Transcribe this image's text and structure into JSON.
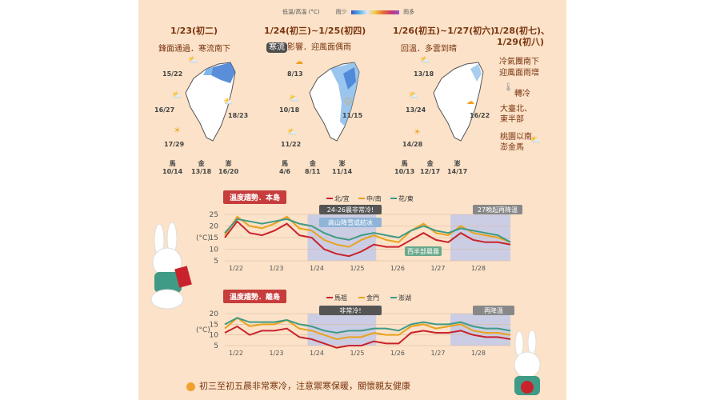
{
  "legend": {
    "label": "低溫/高溫 (°C)",
    "left": "雨少",
    "right": "雨多"
  },
  "forecast": [
    {
      "date": "1/23(初二)",
      "desc": "鋒面通過．寒流南下",
      "cities": [
        "15/22",
        "16/27",
        "18/23",
        "17/29"
      ],
      "islands": [
        [
          "馬",
          "10/14"
        ],
        [
          "金",
          "13/18"
        ],
        [
          "澎",
          "16/20"
        ]
      ]
    },
    {
      "date": "1/24(初三)~1/25(初四)",
      "pill": "寒流",
      "desc_rest": "影響．迎風面偶雨",
      "cities": [
        "8/13",
        "10/18",
        "11/15",
        "11/22"
      ],
      "islands": [
        [
          "馬",
          "4/6"
        ],
        [
          "金",
          "8/11"
        ],
        [
          "澎",
          "11/14"
        ]
      ]
    },
    {
      "date": "1/26(初五)~1/27(初六)",
      "desc": "回溫．多雲到晴",
      "cities": [
        "13/18",
        "13/24",
        "16/22",
        "14/28"
      ],
      "islands": [
        [
          "馬",
          "10/13"
        ],
        [
          "金",
          "12/17"
        ],
        [
          "澎",
          "14/17"
        ]
      ]
    },
    {
      "date": "1/28(初七)、",
      "date2": "1/29(初八)",
      "desc": "冷氣團南下",
      "desc2": "迎風面雨增",
      "cold": "轉冷",
      "note1": "大臺北、",
      "note2": "東半部",
      "note3": "桃園以南、",
      "note4": "澎金馬"
    }
  ],
  "chart_data": [
    {
      "type": "line",
      "title": "溫度趨勢．本島",
      "ylabel": "(°C)",
      "ylim": [
        5,
        25
      ],
      "yticks": [
        "25",
        "20",
        "15",
        "10",
        "5"
      ],
      "xlabels": [
        "1/22",
        "1/23",
        "1/24",
        "1/25",
        "1/26",
        "1/27",
        "1/28"
      ],
      "series": [
        {
          "name": "北/宜",
          "color": "#c8232c",
          "values": [
            15,
            22,
            17,
            16,
            18,
            21,
            16,
            15,
            10,
            8,
            7,
            9,
            12,
            11,
            11,
            14,
            17,
            14,
            13,
            17,
            14,
            13,
            13,
            12
          ]
        },
        {
          "name": "中/南",
          "color": "#e8a21c",
          "values": [
            16,
            24,
            20,
            19,
            21,
            24,
            19,
            18,
            14,
            12,
            11,
            14,
            16,
            14,
            13,
            18,
            21,
            17,
            16,
            20,
            17,
            16,
            15,
            13
          ]
        },
        {
          "name": "花/東",
          "color": "#3f9a86",
          "values": [
            17,
            23,
            22,
            21,
            22,
            23,
            21,
            20,
            17,
            15,
            14,
            16,
            17,
            16,
            15,
            18,
            20,
            18,
            17,
            19,
            18,
            17,
            16,
            13
          ]
        }
      ],
      "annotations": [
        "24-26晨非常冷!",
        "高山降雪或結冰",
        "西半部晨霧",
        "27晚起再降溫"
      ]
    },
    {
      "type": "line",
      "title": "溫度趨勢．離島",
      "ylabel": "(°C)",
      "ylim": [
        5,
        20
      ],
      "yticks": [
        "20",
        "15",
        "10",
        "5"
      ],
      "xlabels": [
        "1/22",
        "1/23",
        "1/24",
        "1/25",
        "1/26",
        "1/27",
        "1/28"
      ],
      "series": [
        {
          "name": "馬祖",
          "color": "#c8232c",
          "values": [
            11,
            14,
            10,
            12,
            12,
            13,
            9,
            8,
            6,
            4,
            5,
            5,
            7,
            6,
            6,
            11,
            12,
            11,
            11,
            12,
            10,
            9,
            9,
            8
          ]
        },
        {
          "name": "金門",
          "color": "#e8a21c",
          "values": [
            13,
            18,
            14,
            15,
            15,
            17,
            13,
            12,
            10,
            8,
            9,
            9,
            11,
            10,
            10,
            14,
            15,
            13,
            14,
            15,
            12,
            11,
            11,
            10
          ]
        },
        {
          "name": "澎湖",
          "color": "#3f9a86",
          "values": [
            15,
            18,
            16,
            16,
            16,
            17,
            15,
            14,
            12,
            11,
            12,
            12,
            13,
            13,
            12,
            15,
            16,
            15,
            15,
            16,
            14,
            13,
            13,
            12
          ]
        }
      ],
      "annotations": [
        "非常冷!",
        "再降溫"
      ]
    }
  ],
  "bullets": [
    "初三至初五晨非常寒冷，注意禦寒保暖，關懷親友健康"
  ],
  "colors": {
    "bg": "#fbe2c8",
    "accent": "#c73c3c",
    "text": "#7a3510"
  }
}
